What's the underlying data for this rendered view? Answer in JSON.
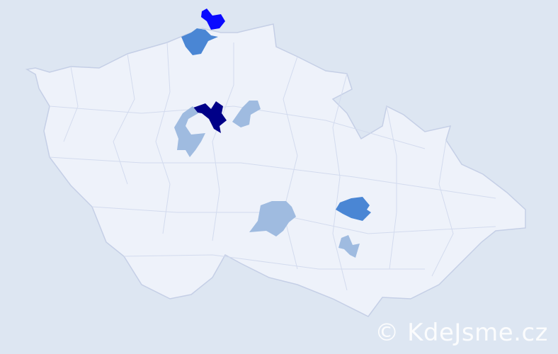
{
  "map": {
    "background_color": "#dde6f2",
    "base_fill": "#eef2fa",
    "border_color": "#c5cfe6",
    "highlighted_regions": [
      {
        "level": "highest",
        "color": "#000088"
      },
      {
        "level": "high",
        "color": "#0a0aff"
      },
      {
        "level": "medium",
        "color": "#4a86d4"
      },
      {
        "level": "medium",
        "color": "#4a86d4"
      },
      {
        "level": "low",
        "color": "#9fbbe0"
      },
      {
        "level": "low",
        "color": "#9fbbe0"
      },
      {
        "level": "low",
        "color": "#9fbbe0"
      },
      {
        "level": "low",
        "color": "#9fbbe0"
      }
    ]
  },
  "watermark": {
    "text": "© KdeJsme.cz"
  }
}
